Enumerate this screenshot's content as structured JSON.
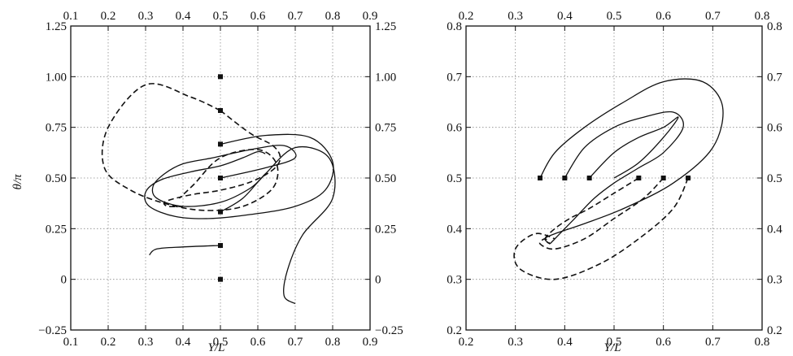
{
  "chart_data": [
    {
      "type": "line",
      "title": "",
      "xlabel": "Y/L",
      "ylabel": "θ/π",
      "xlim": [
        0.1,
        0.9
      ],
      "ylim": [
        -0.25,
        1.25
      ],
      "grid": true,
      "xticks": [
        "0.1",
        "0.2",
        "0.3",
        "0.4",
        "0.5",
        "0.6",
        "0.7",
        "0.8",
        "0.9"
      ],
      "yticks": [
        "−0.25",
        "0",
        "0.25",
        "0.50",
        "0.75",
        "1.00",
        "1.25"
      ],
      "yticks_right": [
        "−0.25",
        "0",
        "0.25",
        "0.50",
        "0.75",
        "1.00",
        "1.25"
      ],
      "xticks_top": [
        "0.1",
        "0.2",
        "0.3",
        "0.4",
        "0.5",
        "0.6",
        "0.7",
        "0.8",
        "0.9"
      ],
      "start_points": {
        "x": [
          0.5,
          0.5,
          0.5,
          0.5,
          0.5,
          0.5,
          0.5
        ],
        "y": [
          1.0,
          0.833,
          0.667,
          0.5,
          0.333,
          0.167,
          0.0
        ]
      },
      "series": [
        {
          "style": "dashed",
          "x": [
            0.5,
            0.42,
            0.3,
            0.2,
            0.19,
            0.26,
            0.36,
            0.46,
            0.56,
            0.64,
            0.65,
            0.6,
            0.5,
            0.43,
            0.39
          ],
          "y": [
            0.833,
            0.9,
            0.96,
            0.75,
            0.55,
            0.44,
            0.37,
            0.34,
            0.36,
            0.45,
            0.57,
            0.64,
            0.6,
            0.47,
            0.4
          ]
        },
        {
          "style": "solid",
          "x": [
            0.5,
            0.62,
            0.74,
            0.8,
            0.78,
            0.7,
            0.58,
            0.47,
            0.38,
            0.31,
            0.3,
            0.34,
            0.42,
            0.5,
            0.56,
            0.6,
            0.62
          ],
          "y": [
            0.667,
            0.71,
            0.7,
            0.58,
            0.44,
            0.36,
            0.32,
            0.3,
            0.31,
            0.36,
            0.43,
            0.49,
            0.53,
            0.56,
            0.6,
            0.63,
            0.62
          ]
        },
        {
          "style": "dashed",
          "x": [
            0.5,
            0.58,
            0.64,
            0.66,
            0.64,
            0.58,
            0.5,
            0.43,
            0.38,
            0.35,
            0.36,
            0.4
          ],
          "y": [
            0.833,
            0.72,
            0.66,
            0.6,
            0.54,
            0.48,
            0.44,
            0.42,
            0.4,
            0.38,
            0.36,
            0.36
          ]
        },
        {
          "style": "solid",
          "x": [
            0.5,
            0.62,
            0.7,
            0.67,
            0.58,
            0.48,
            0.4,
            0.35,
            0.32,
            0.33,
            0.4,
            0.5,
            0.58,
            0.62
          ],
          "y": [
            0.5,
            0.55,
            0.6,
            0.66,
            0.64,
            0.6,
            0.57,
            0.52,
            0.46,
            0.4,
            0.36,
            0.38,
            0.45,
            0.52
          ]
        },
        {
          "style": "solid",
          "x": [
            0.5,
            0.56,
            0.62,
            0.7,
            0.79,
            0.8,
            0.72,
            0.68,
            0.67,
            0.7
          ],
          "y": [
            0.333,
            0.4,
            0.52,
            0.65,
            0.6,
            0.4,
            0.22,
            0.05,
            -0.08,
            -0.12
          ]
        },
        {
          "style": "solid",
          "x": [
            0.5,
            0.4,
            0.33,
            0.31
          ],
          "y": [
            0.167,
            0.16,
            0.15,
            0.12
          ]
        }
      ]
    },
    {
      "type": "line",
      "title": "",
      "xlabel": "Y/L",
      "ylabel": "",
      "xlim": [
        0.2,
        0.8
      ],
      "ylim": [
        0.2,
        0.8
      ],
      "grid": true,
      "xticks": [
        "0.2",
        "0.3",
        "0.4",
        "0.5",
        "0.6",
        "0.7",
        "0.8"
      ],
      "yticks": [
        "0.2",
        "0.3",
        "0.4",
        "0.5",
        "0.6",
        "0.7",
        "0.8"
      ],
      "yticks_right": [
        "0.2",
        "0.3",
        "0.4",
        "0.5",
        "0.6",
        "0.7",
        "0.8"
      ],
      "xticks_top": [
        "0.2",
        "0.3",
        "0.4",
        "0.5",
        "0.6",
        "0.7",
        "0.8"
      ],
      "start_points": {
        "x": [
          0.35,
          0.4,
          0.45,
          0.55,
          0.6,
          0.65
        ],
        "y": [
          0.5,
          0.5,
          0.5,
          0.5,
          0.5,
          0.5
        ]
      },
      "series": [
        {
          "style": "solid",
          "x": [
            0.35,
            0.38,
            0.44,
            0.52,
            0.6,
            0.68,
            0.72,
            0.7,
            0.62,
            0.52,
            0.44,
            0.38,
            0.36,
            0.37
          ],
          "y": [
            0.5,
            0.55,
            0.6,
            0.65,
            0.69,
            0.69,
            0.64,
            0.56,
            0.49,
            0.44,
            0.41,
            0.39,
            0.38,
            0.37
          ]
        },
        {
          "style": "solid",
          "x": [
            0.4,
            0.44,
            0.5,
            0.56,
            0.62,
            0.64,
            0.6,
            0.55,
            0.5,
            0.46,
            0.42,
            0.39,
            0.37
          ],
          "y": [
            0.5,
            0.56,
            0.6,
            0.62,
            0.63,
            0.6,
            0.55,
            0.52,
            0.49,
            0.46,
            0.42,
            0.39,
            0.37
          ]
        },
        {
          "style": "solid",
          "x": [
            0.45,
            0.5,
            0.55,
            0.6,
            0.63,
            0.6,
            0.55,
            0.5
          ],
          "y": [
            0.5,
            0.55,
            0.58,
            0.6,
            0.62,
            0.58,
            0.53,
            0.5
          ]
        },
        {
          "style": "dashed",
          "x": [
            0.55,
            0.5,
            0.45,
            0.41,
            0.38,
            0.36,
            0.37
          ],
          "y": [
            0.5,
            0.47,
            0.44,
            0.42,
            0.4,
            0.38,
            0.37
          ]
        },
        {
          "style": "dashed",
          "x": [
            0.6,
            0.56,
            0.5,
            0.44,
            0.38,
            0.35,
            0.36,
            0.37
          ],
          "y": [
            0.5,
            0.46,
            0.42,
            0.38,
            0.36,
            0.37,
            0.38,
            0.37
          ]
        },
        {
          "style": "dashed",
          "x": [
            0.65,
            0.62,
            0.55,
            0.47,
            0.38,
            0.31,
            0.3,
            0.34,
            0.38
          ],
          "y": [
            0.5,
            0.44,
            0.38,
            0.33,
            0.3,
            0.32,
            0.36,
            0.39,
            0.38
          ]
        }
      ]
    }
  ]
}
